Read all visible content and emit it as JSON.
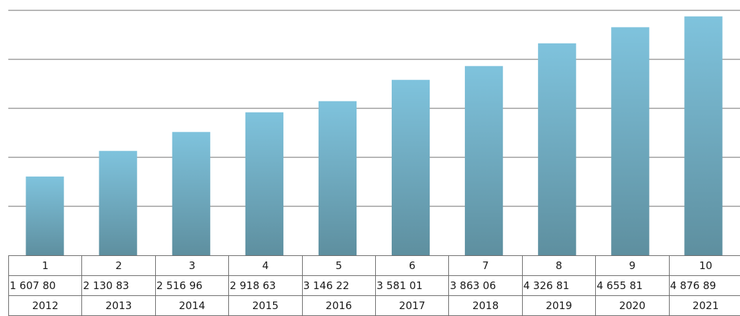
{
  "chart_data": {
    "type": "bar",
    "categories": [
      "1",
      "2",
      "3",
      "4",
      "5",
      "6",
      "7",
      "8",
      "9",
      "10"
    ],
    "values": [
      1607800,
      2130830,
      2516960,
      2918630,
      3146220,
      3581010,
      3863060,
      4326810,
      4655810,
      4876890
    ],
    "value_labels": [
      "1 607 80",
      "2 130 83",
      "2 516 96",
      "2 918 63",
      "3 146 22",
      "3 581 01",
      "3 863 06",
      "4 326 81",
      "4 655 81",
      "4 876 89"
    ],
    "years": [
      "2012",
      "2013",
      "2014",
      "2015",
      "2016",
      "2017",
      "2018",
      "2019",
      "2020",
      "2021"
    ],
    "ylim": [
      0,
      5000000
    ],
    "grid": true,
    "bar_color_top": "#7fc3dd",
    "bar_color_bottom": "#5e8f9f",
    "grid_color": "#6b6b6b"
  }
}
